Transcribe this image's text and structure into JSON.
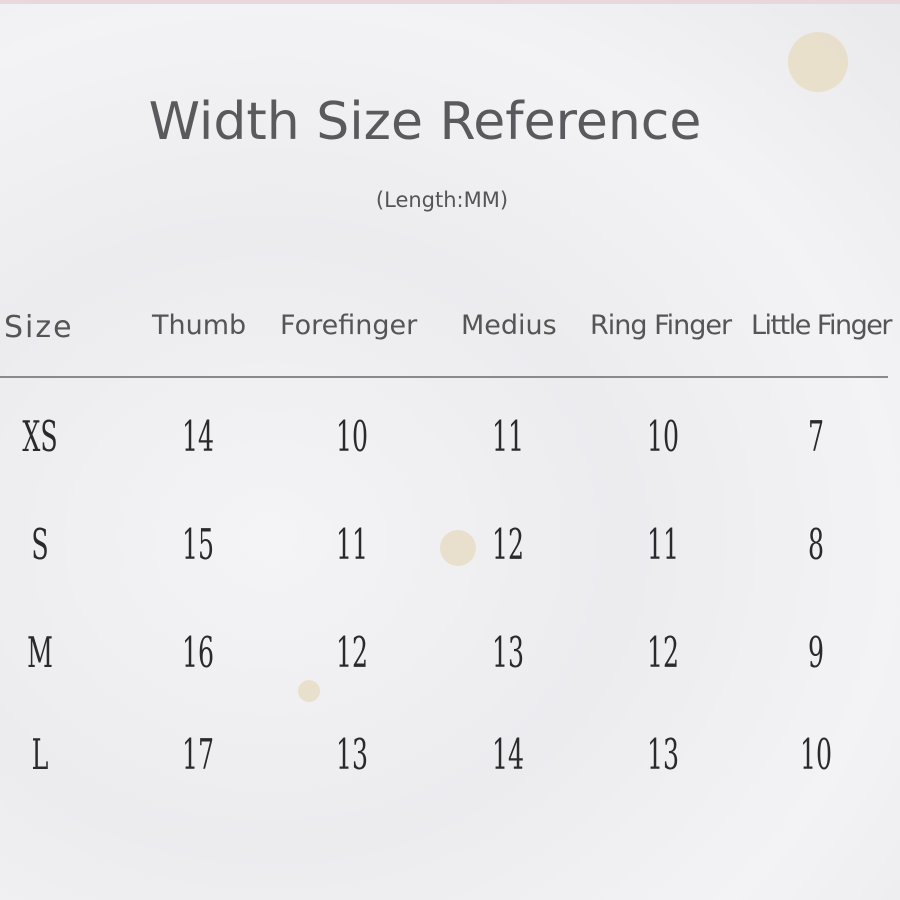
{
  "title": "Width Size Reference",
  "subtitle": "(Length:MM)",
  "headers": [
    "Size",
    "Thumb",
    "Forefinger",
    "Medius",
    "Ring Finger",
    "Little Finger"
  ],
  "rows": [
    [
      "XS",
      "14",
      "10",
      "11",
      "10",
      "7"
    ],
    [
      "S",
      "15",
      "11",
      "12",
      "11",
      "8"
    ],
    [
      "M",
      "16",
      "12",
      "13",
      "12",
      "9"
    ],
    [
      "L",
      "17",
      "13",
      "14",
      "13",
      "10"
    ]
  ]
}
